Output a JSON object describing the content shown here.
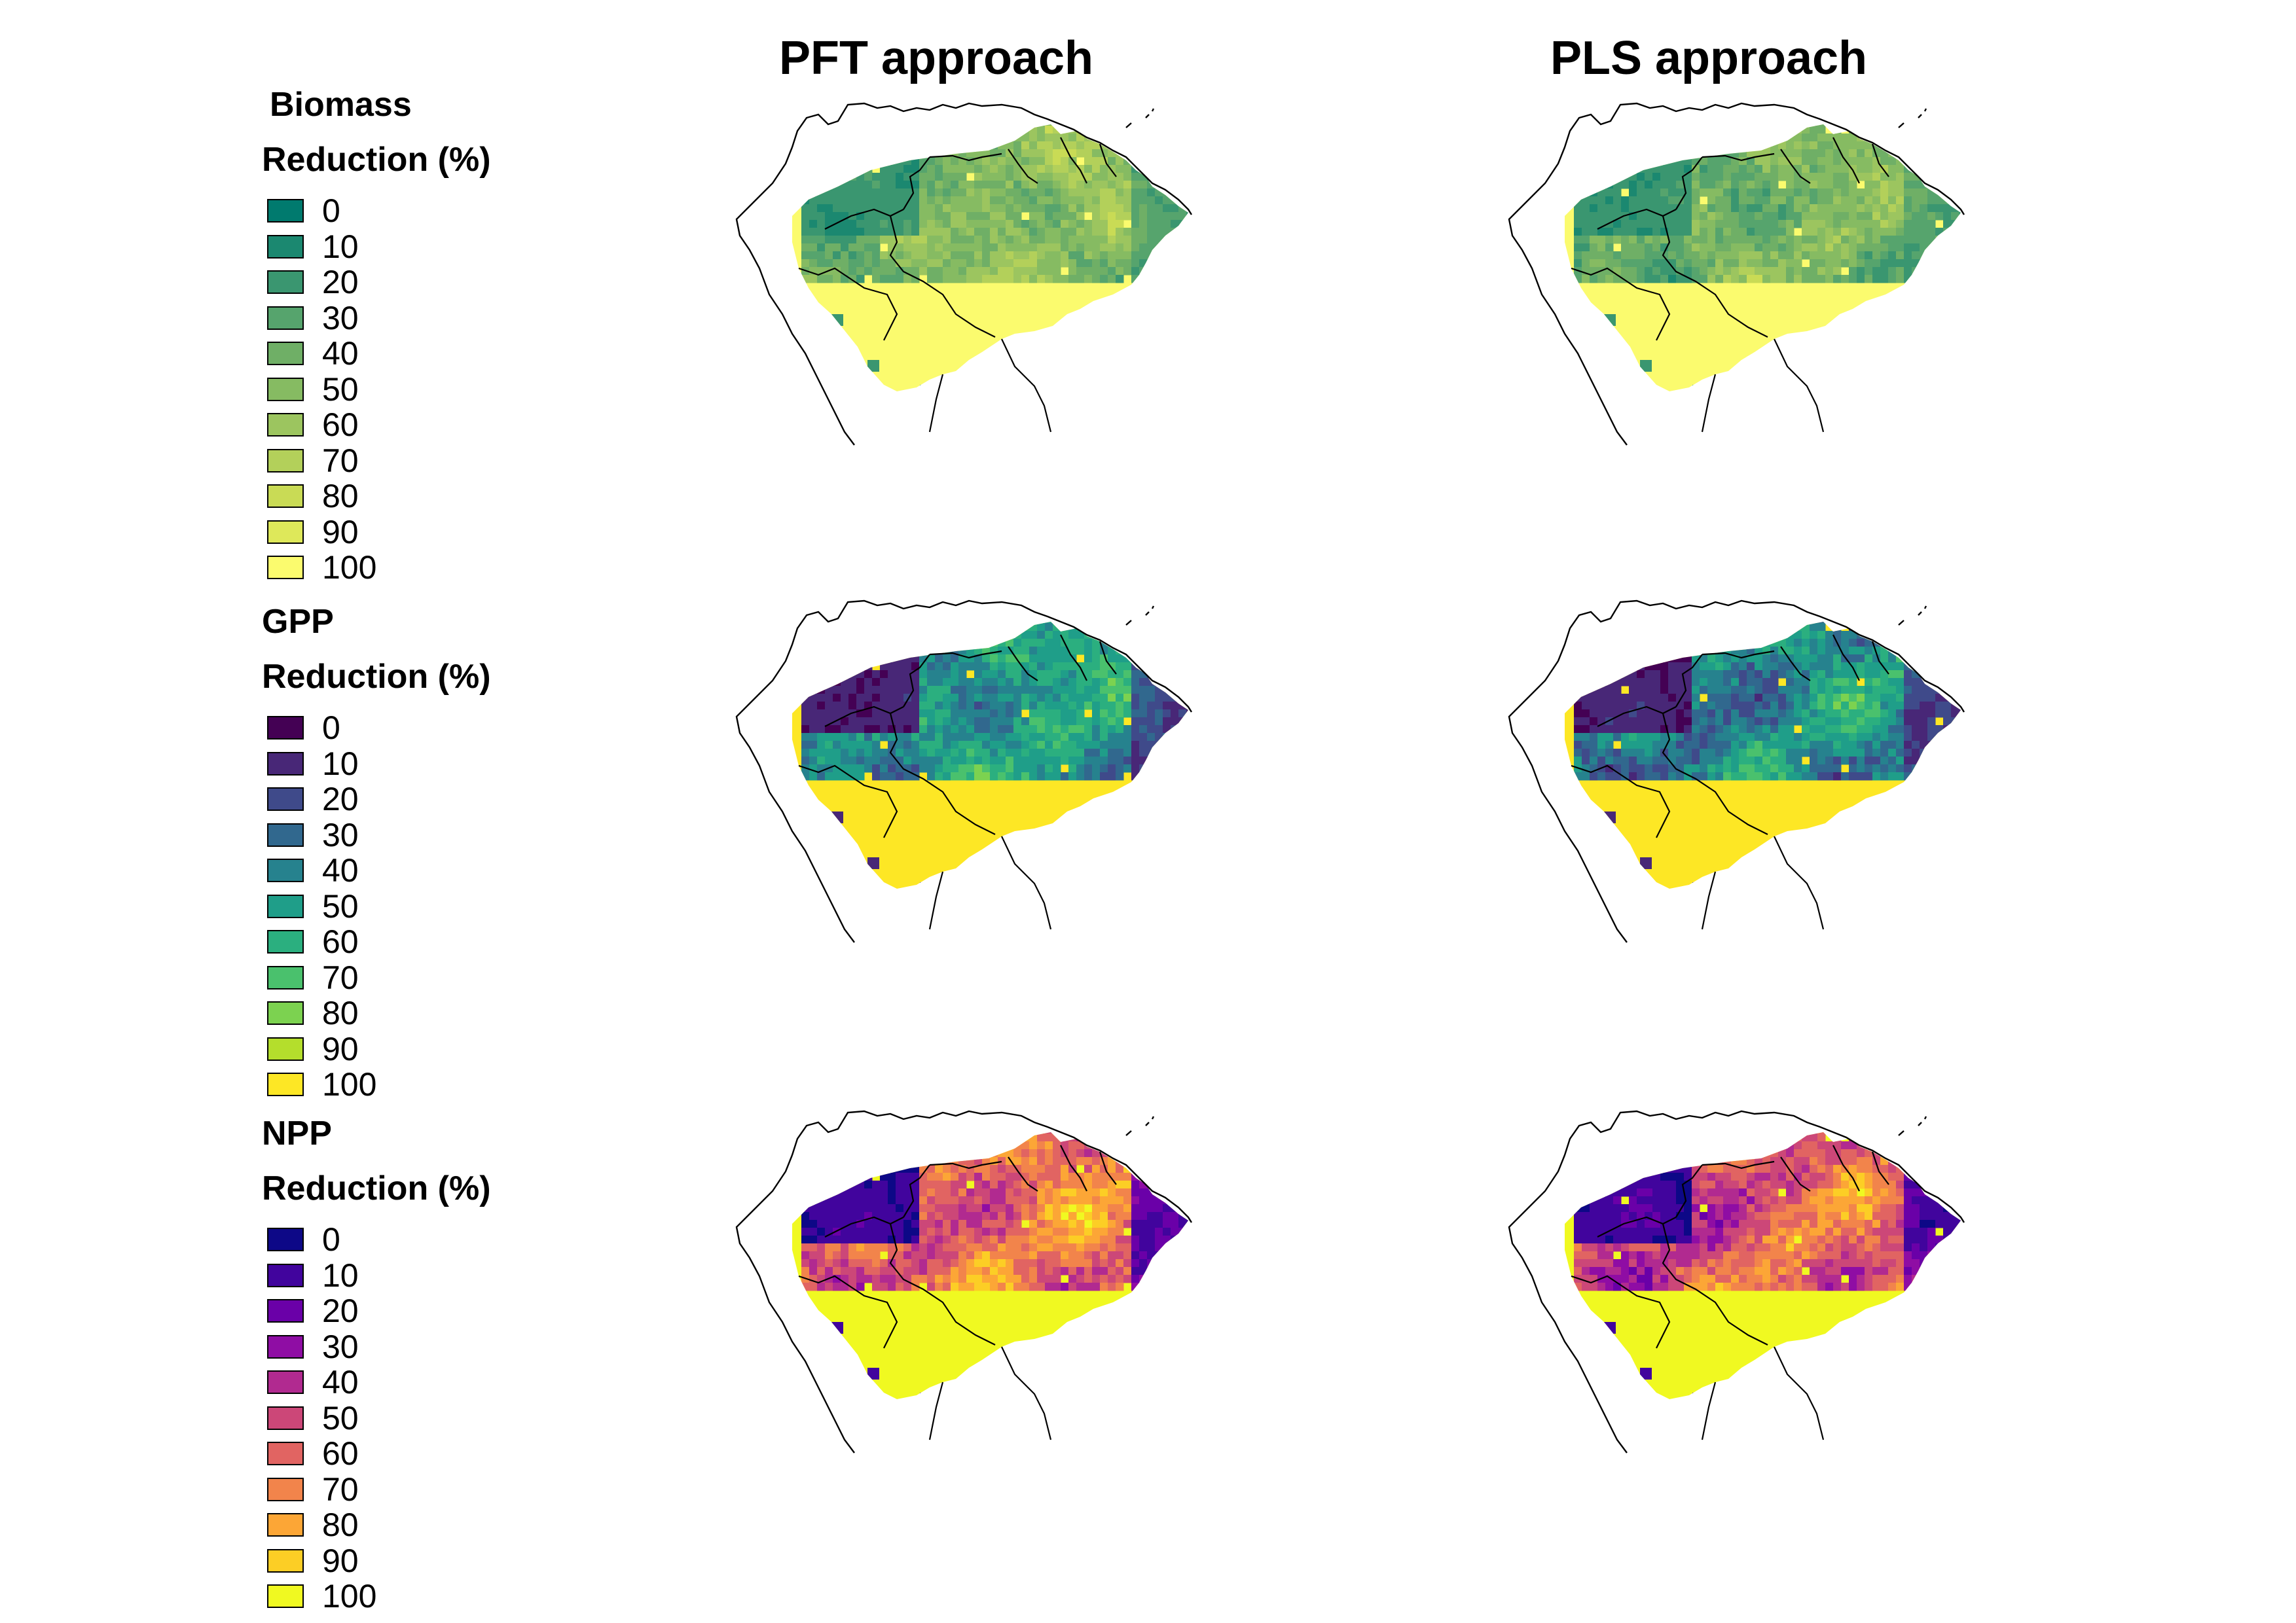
{
  "columns": [
    "PFT approach",
    "PLS approach"
  ],
  "legends": [
    {
      "title": "Biomass",
      "subtitle": "Reduction (%)",
      "labels": [
        "0",
        "10",
        "20",
        "30",
        "40",
        "50",
        "60",
        "70",
        "80",
        "90",
        "100"
      ],
      "colors": [
        "#007A6E",
        "#1B8870",
        "#3A9670",
        "#56A46D",
        "#6FAF66",
        "#86BB62",
        "#9CC55F",
        "#B3D05A",
        "#C9DB55",
        "#DEE85A",
        "#FBFB6E"
      ]
    },
    {
      "title": "GPP",
      "subtitle": "Reduction (%)",
      "labels": [
        "0",
        "10",
        "20",
        "30",
        "40",
        "50",
        "60",
        "70",
        "80",
        "90",
        "100"
      ],
      "colors": [
        "#440154",
        "#482777",
        "#3F4A8A",
        "#31688E",
        "#26828E",
        "#1F9E89",
        "#2BAF7F",
        "#4AC16D",
        "#7CD250",
        "#B4DE2C",
        "#FDE725"
      ]
    },
    {
      "title": "NPP",
      "subtitle": "Reduction (%)",
      "labels": [
        "0",
        "10",
        "20",
        "30",
        "40",
        "50",
        "60",
        "70",
        "80",
        "90",
        "100"
      ],
      "colors": [
        "#0D0887",
        "#41049D",
        "#6A00A8",
        "#8F0DA4",
        "#B12A90",
        "#CC4778",
        "#E16462",
        "#F2844B",
        "#FCA636",
        "#FCCE25",
        "#F0F921"
      ]
    }
  ],
  "maps": [
    {
      "variable": "Biomass",
      "approach": "PFT approach"
    },
    {
      "variable": "Biomass",
      "approach": "PLS approach"
    },
    {
      "variable": "GPP",
      "approach": "PFT approach"
    },
    {
      "variable": "GPP",
      "approach": "PLS approach"
    },
    {
      "variable": "NPP",
      "approach": "PFT approach"
    },
    {
      "variable": "NPP",
      "approach": "PLS approach"
    }
  ]
}
